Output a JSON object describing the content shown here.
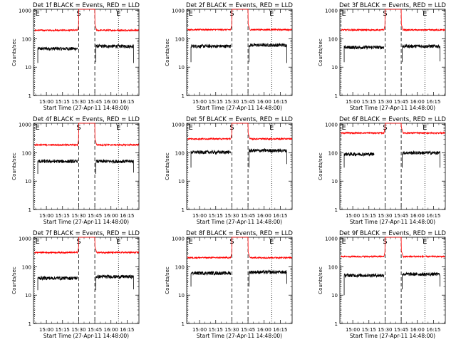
{
  "figure": {
    "xlabel": "Start Time (27-Apr-11 14:48:00)",
    "ylabel": "Counts/sec",
    "x_tick_labels": [
      "15:00",
      "15:15",
      "15:30",
      "15:45",
      "16:00",
      "16:15"
    ],
    "y_tick_labels": [
      "1",
      "10",
      "100",
      "1000"
    ],
    "marker_letters": {
      "eclipse": "E",
      "saa": "S"
    },
    "colors": {
      "events": "#000000",
      "lld": "#ff0000",
      "axes": "#000000"
    }
  },
  "chart_data": [
    {
      "type": "line",
      "title": "Det 1f BLACK = Events, RED = LLD",
      "xlabel": "Start Time (27-Apr-11 14:48:00)",
      "ylabel": "Counts/sec",
      "ylog": true,
      "ylim": [
        1,
        1100
      ],
      "xlim": [
        "14:48",
        "16:26"
      ],
      "x_ticks": [
        "15:00",
        "15:15",
        "15:30",
        "15:45",
        "16:00",
        "16:15"
      ],
      "markers": [
        {
          "time": "14:49",
          "label": "E",
          "style": "dotted"
        },
        {
          "time": "15:30",
          "label": "S",
          "style": "dashed"
        },
        {
          "time": "15:45",
          "label": "",
          "style": "dashed"
        },
        {
          "time": "16:07",
          "label": "E",
          "style": "dotted"
        }
      ],
      "series": [
        {
          "name": "Events",
          "color": "#000000",
          "segments": [
            {
              "start": "14:52",
              "end": "15:29",
              "start_value": 14,
              "level": 45
            },
            {
              "start": "15:46",
              "end": "16:21",
              "start_value": 15,
              "level": 55,
              "end_value": 14
            }
          ]
        },
        {
          "name": "LLD",
          "color": "#ff0000",
          "segments": [
            {
              "start": "14:49",
              "end": "16:26",
              "level": 200,
              "saa_from": "15:30",
              "saa_to": "15:45",
              "saa_peak": 1100
            }
          ]
        }
      ]
    },
    {
      "type": "line",
      "title": "Det 2f BLACK = Events, RED = LLD",
      "xlabel": "Start Time (27-Apr-11 14:48:00)",
      "ylabel": "Counts/sec",
      "ylog": true,
      "ylim": [
        1,
        1100
      ],
      "xlim": [
        "14:48",
        "16:26"
      ],
      "x_ticks": [
        "15:00",
        "15:15",
        "15:30",
        "15:45",
        "16:00",
        "16:15"
      ],
      "markers": [
        {
          "time": "14:49",
          "label": "E",
          "style": "dotted"
        },
        {
          "time": "15:30",
          "label": "S",
          "style": "dashed"
        },
        {
          "time": "15:45",
          "label": "",
          "style": "dashed"
        },
        {
          "time": "16:07",
          "label": "E",
          "style": "dotted"
        }
      ],
      "series": [
        {
          "name": "Events",
          "color": "#000000",
          "segments": [
            {
              "start": "14:52",
              "end": "15:29",
              "start_value": 15,
              "level": 55
            },
            {
              "start": "15:46",
              "end": "16:21",
              "start_value": 15,
              "level": 60,
              "end_value": 14
            }
          ]
        },
        {
          "name": "LLD",
          "color": "#ff0000",
          "segments": [
            {
              "start": "14:49",
              "end": "16:26",
              "level": 210,
              "saa_from": "15:30",
              "saa_to": "15:45",
              "saa_peak": 1100
            }
          ]
        }
      ]
    },
    {
      "type": "line",
      "title": "Det 3f BLACK = Events, RED = LLD",
      "xlabel": "Start Time (27-Apr-11 14:48:00)",
      "ylabel": "Counts/sec",
      "ylog": true,
      "ylim": [
        1,
        1100
      ],
      "xlim": [
        "14:48",
        "16:26"
      ],
      "x_ticks": [
        "15:00",
        "15:15",
        "15:30",
        "15:45",
        "16:00",
        "16:15"
      ],
      "markers": [
        {
          "time": "14:49",
          "label": "E",
          "style": "dotted"
        },
        {
          "time": "15:30",
          "label": "S",
          "style": "dashed"
        },
        {
          "time": "15:45",
          "label": "",
          "style": "dashed"
        },
        {
          "time": "16:07",
          "label": "E",
          "style": "dotted"
        }
      ],
      "series": [
        {
          "name": "Events",
          "color": "#000000",
          "segments": [
            {
              "start": "14:52",
              "end": "15:29",
              "start_value": 15,
              "level": 50
            },
            {
              "start": "15:46",
              "end": "16:21",
              "start_value": 15,
              "level": 55,
              "end_value": 16
            }
          ]
        },
        {
          "name": "LLD",
          "color": "#ff0000",
          "segments": [
            {
              "start": "14:49",
              "end": "16:26",
              "level": 205,
              "saa_from": "15:30",
              "saa_to": "15:45",
              "saa_peak": 1100
            }
          ]
        }
      ]
    },
    {
      "type": "line",
      "title": "Det 4f BLACK = Events, RED = LLD",
      "xlabel": "Start Time (27-Apr-11 14:48:00)",
      "ylabel": "Counts/sec",
      "ylog": true,
      "ylim": [
        1,
        1100
      ],
      "xlim": [
        "14:48",
        "16:26"
      ],
      "x_ticks": [
        "15:00",
        "15:15",
        "15:30",
        "15:45",
        "16:00",
        "16:15"
      ],
      "markers": [
        {
          "time": "14:49",
          "label": "E",
          "style": "dotted"
        },
        {
          "time": "15:30",
          "label": "S",
          "style": "dashed"
        },
        {
          "time": "15:45",
          "label": "",
          "style": "dashed"
        },
        {
          "time": "16:07",
          "label": "E",
          "style": "dotted"
        }
      ],
      "series": [
        {
          "name": "Events",
          "color": "#000000",
          "segments": [
            {
              "start": "14:52",
              "end": "15:29",
              "start_value": 18,
              "level": 50
            },
            {
              "start": "15:46",
              "end": "16:21",
              "start_value": 18,
              "level": 50,
              "end_value": 20
            }
          ]
        },
        {
          "name": "LLD",
          "color": "#ff0000",
          "segments": [
            {
              "start": "14:49",
              "end": "16:26",
              "level": 190,
              "saa_from": "15:30",
              "saa_to": "15:45",
              "saa_peak": 1100
            }
          ]
        }
      ]
    },
    {
      "type": "line",
      "title": "Det 5f BLACK = Events, RED = LLD",
      "xlabel": "Start Time (27-Apr-11 14:48:00)",
      "ylabel": "Counts/sec",
      "ylog": true,
      "ylim": [
        1,
        1100
      ],
      "xlim": [
        "14:48",
        "16:26"
      ],
      "x_ticks": [
        "15:00",
        "15:15",
        "15:30",
        "15:45",
        "16:00",
        "16:15"
      ],
      "markers": [
        {
          "time": "14:49",
          "label": "E",
          "style": "dotted"
        },
        {
          "time": "15:30",
          "label": "S",
          "style": "dashed"
        },
        {
          "time": "15:45",
          "label": "",
          "style": "dashed"
        },
        {
          "time": "16:07",
          "label": "E",
          "style": "dotted"
        }
      ],
      "series": [
        {
          "name": "Events",
          "color": "#000000",
          "segments": [
            {
              "start": "14:52",
              "end": "15:29",
              "start_value": 30,
              "level": 105
            },
            {
              "start": "15:46",
              "end": "16:21",
              "start_value": 30,
              "level": 120,
              "end_value": 40
            }
          ]
        },
        {
          "name": "LLD",
          "color": "#ff0000",
          "segments": [
            {
              "start": "14:49",
              "end": "16:26",
              "level": 310,
              "saa_from": "15:30",
              "saa_to": "15:45",
              "saa_peak": 1100
            }
          ]
        }
      ]
    },
    {
      "type": "line",
      "title": "Det 6f BLACK = Events, RED = LLD",
      "xlabel": "Start Time (27-Apr-11 14:48:00)",
      "ylabel": "Counts/sec",
      "ylog": true,
      "ylim": [
        1,
        1100
      ],
      "xlim": [
        "14:48",
        "16:26"
      ],
      "x_ticks": [
        "15:00",
        "15:15",
        "15:30",
        "15:45",
        "16:00",
        "16:15"
      ],
      "markers": [
        {
          "time": "14:49",
          "label": "E",
          "style": "dotted"
        },
        {
          "time": "15:30",
          "label": "S",
          "style": "dashed"
        },
        {
          "time": "15:45",
          "label": "",
          "style": "dashed"
        },
        {
          "time": "16:07",
          "label": "E",
          "style": "dotted"
        }
      ],
      "series": [
        {
          "name": "Events",
          "color": "#000000",
          "segments": [
            {
              "start": "14:52",
              "end": "15:20",
              "start_value": 30,
              "level": 90
            },
            {
              "start": "15:46",
              "end": "16:21",
              "start_value": 30,
              "level": 100,
              "end_value": 30
            }
          ]
        },
        {
          "name": "LLD",
          "color": "#ff0000",
          "segments": [
            {
              "start": "14:49",
              "end": "16:26",
              "level": 500,
              "saa_from": "15:30",
              "saa_to": "15:45",
              "saa_peak": 1100
            }
          ]
        }
      ]
    },
    {
      "type": "line",
      "title": "Det 7f BLACK = Events, RED = LLD",
      "xlabel": "Start Time (27-Apr-11 14:48:00)",
      "ylabel": "Counts/sec",
      "ylog": true,
      "ylim": [
        1,
        1100
      ],
      "xlim": [
        "14:48",
        "16:26"
      ],
      "x_ticks": [
        "15:00",
        "15:15",
        "15:30",
        "15:45",
        "16:00",
        "16:15"
      ],
      "markers": [
        {
          "time": "14:49",
          "label": "E",
          "style": "dotted"
        },
        {
          "time": "15:30",
          "label": "S",
          "style": "dashed"
        },
        {
          "time": "15:45",
          "label": "",
          "style": "dashed"
        },
        {
          "time": "16:07",
          "label": "E",
          "style": "dotted"
        }
      ],
      "series": [
        {
          "name": "Events",
          "color": "#000000",
          "segments": [
            {
              "start": "14:52",
              "end": "15:29",
              "start_value": 15,
              "level": 40
            },
            {
              "start": "15:46",
              "end": "16:21",
              "start_value": 15,
              "level": 45,
              "end_value": 16
            }
          ]
        },
        {
          "name": "LLD",
          "color": "#ff0000",
          "segments": [
            {
              "start": "14:49",
              "end": "16:26",
              "level": 320,
              "saa_from": "15:30",
              "saa_to": "15:45",
              "saa_peak": 1100
            }
          ]
        }
      ]
    },
    {
      "type": "line",
      "title": "Det 8f BLACK = Events, RED = LLD",
      "xlabel": "Start Time (27-Apr-11 14:48:00)",
      "ylabel": "Counts/sec",
      "ylog": true,
      "ylim": [
        1,
        1100
      ],
      "xlim": [
        "14:48",
        "16:26"
      ],
      "x_ticks": [
        "15:00",
        "15:15",
        "15:30",
        "15:45",
        "16:00",
        "16:15"
      ],
      "markers": [
        {
          "time": "14:49",
          "label": "E",
          "style": "dotted"
        },
        {
          "time": "15:30",
          "label": "S",
          "style": "dashed"
        },
        {
          "time": "15:45",
          "label": "",
          "style": "dashed"
        },
        {
          "time": "16:07",
          "label": "E",
          "style": "dotted"
        }
      ],
      "series": [
        {
          "name": "Events",
          "color": "#000000",
          "segments": [
            {
              "start": "14:52",
              "end": "15:29",
              "start_value": 20,
              "level": 60
            },
            {
              "start": "15:46",
              "end": "16:21",
              "start_value": 20,
              "level": 65,
              "end_value": 25
            }
          ]
        },
        {
          "name": "LLD",
          "color": "#ff0000",
          "segments": [
            {
              "start": "14:49",
              "end": "16:26",
              "level": 210,
              "saa_from": "15:30",
              "saa_to": "15:45",
              "saa_peak": 1100
            }
          ]
        }
      ]
    },
    {
      "type": "line",
      "title": "Det 9f BLACK = Events, RED = LLD",
      "xlabel": "Start Time (27-Apr-11 14:48:00)",
      "ylabel": "Counts/sec",
      "ylog": true,
      "ylim": [
        1,
        1100
      ],
      "xlim": [
        "14:48",
        "16:26"
      ],
      "x_ticks": [
        "15:00",
        "15:15",
        "15:30",
        "15:45",
        "16:00",
        "16:15"
      ],
      "markers": [
        {
          "time": "14:49",
          "label": "E",
          "style": "dotted"
        },
        {
          "time": "15:30",
          "label": "S",
          "style": "dashed"
        },
        {
          "time": "15:45",
          "label": "",
          "style": "dashed"
        },
        {
          "time": "16:07",
          "label": "E",
          "style": "dotted"
        }
      ],
      "series": [
        {
          "name": "Events",
          "color": "#000000",
          "segments": [
            {
              "start": "14:52",
              "end": "15:29",
              "start_value": 10,
              "level": 50
            },
            {
              "start": "15:46",
              "end": "16:21",
              "start_value": 16,
              "level": 55,
              "end_value": 20
            }
          ]
        },
        {
          "name": "LLD",
          "color": "#ff0000",
          "segments": [
            {
              "start": "14:49",
              "end": "16:26",
              "level": 230,
              "saa_from": "15:30",
              "saa_to": "15:45",
              "saa_peak": 1100
            }
          ]
        }
      ]
    }
  ]
}
